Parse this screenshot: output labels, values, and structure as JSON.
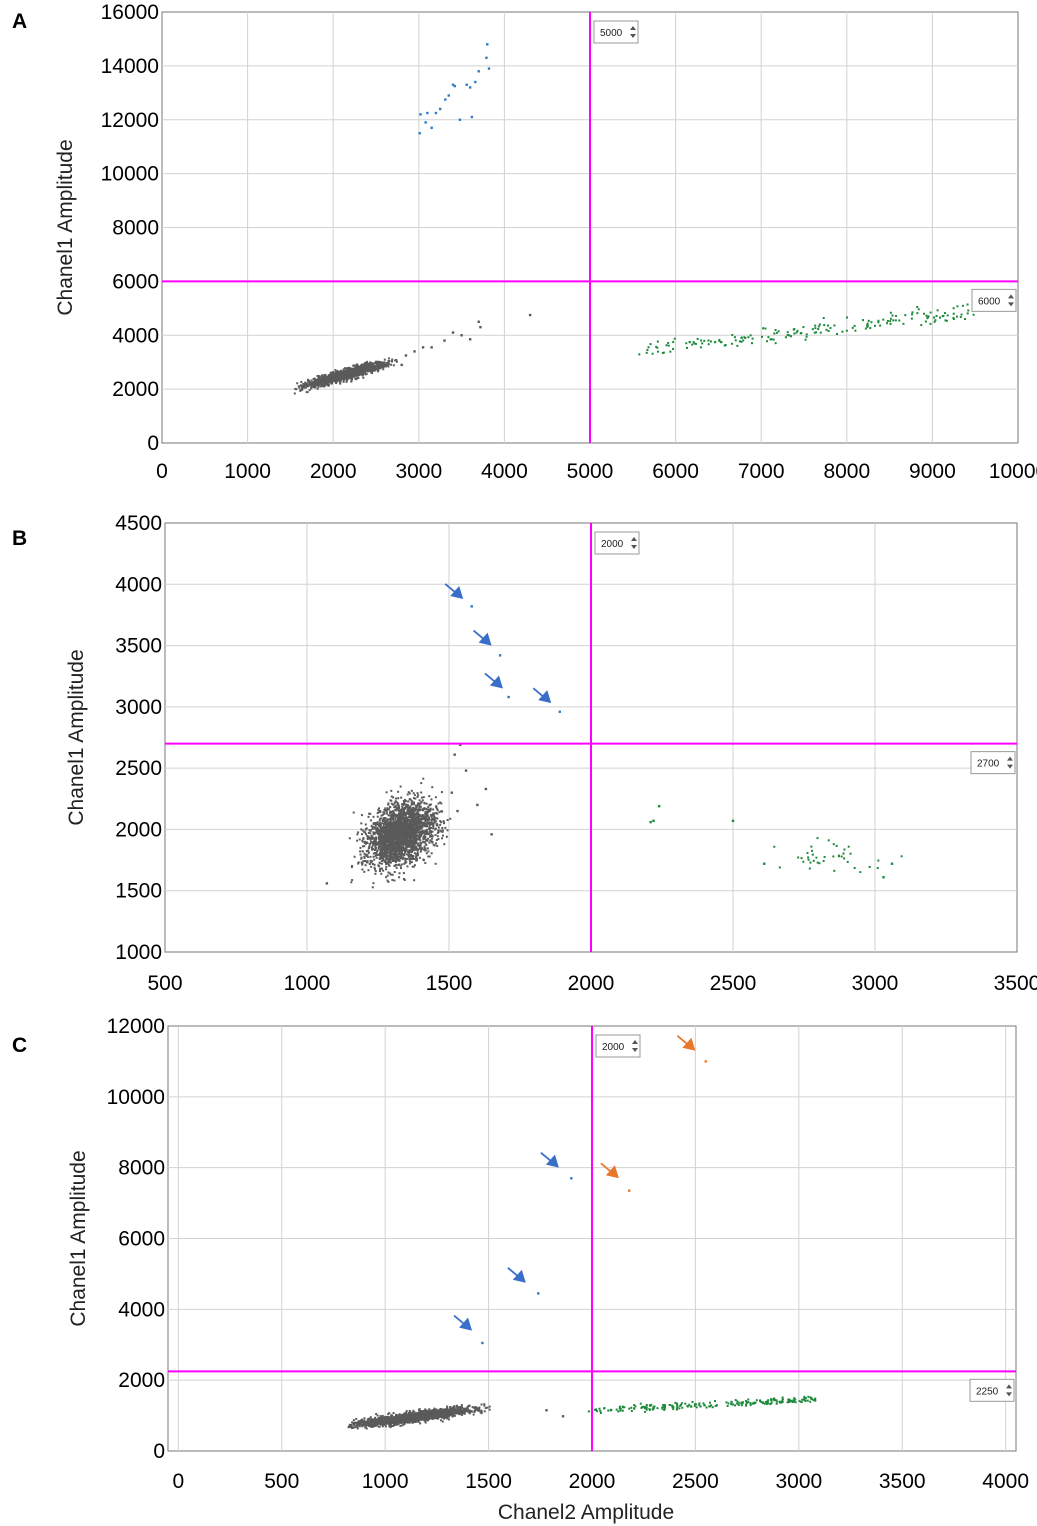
{
  "figure": {
    "panels": [
      "A",
      "B",
      "C"
    ]
  },
  "colors": {
    "threshold": "#ff00ff",
    "negative_cluster": "#5a5a5a",
    "ch1_positive": "#2f7bc4",
    "ch2_positive": "#1c8a3a",
    "blue_arrow": "#3a6fc9",
    "orange_arrow": "#e8782c",
    "orange_droplet": "#e8782c"
  },
  "chart_data": [
    {
      "type": "scatter",
      "panel_label": "A",
      "xlabel": "",
      "ylabel": "Chanel1 Amplitude",
      "xlim": [
        0,
        10000
      ],
      "ylim": [
        0,
        16000
      ],
      "xticks": [
        0,
        1000,
        2000,
        3000,
        4000,
        5000,
        6000,
        7000,
        8000,
        9000,
        10000
      ],
      "yticks": [
        0,
        2000,
        4000,
        6000,
        8000,
        10000,
        12000,
        14000,
        16000
      ],
      "x_threshold": 5000,
      "y_threshold": 6000,
      "x_threshold_label": "5000",
      "y_threshold_label": "6000",
      "grid": true,
      "clusters": [
        {
          "name": "",
          "color_key": "negative_cluster",
          "kind": "correlated",
          "cx": 2150,
          "cy": 2550,
          "sx": 230,
          "sy": 220,
          "corr": 0.9,
          "n": 1500,
          "xmin": 1550,
          "xmax": 2850
        },
        {
          "name": "",
          "color_key": "ch2_positive",
          "kind": "trend",
          "x_from": 5500,
          "y_from": 3350,
          "x_to": 9500,
          "y_to": 4900,
          "spread": 170,
          "n": 180
        }
      ],
      "points": [
        {
          "color_key": "ch1_positive",
          "xy": [
            [
              3020,
              12200
            ],
            [
              3080,
              11900
            ],
            [
              3100,
              12250
            ],
            [
              3150,
              11700
            ],
            [
              3200,
              12250
            ],
            [
              3010,
              11500
            ],
            [
              3250,
              12400
            ],
            [
              3310,
              12750
            ],
            [
              3350,
              12900
            ],
            [
              3420,
              13250
            ],
            [
              3480,
              12000
            ],
            [
              3560,
              13300
            ],
            [
              3620,
              12100
            ],
            [
              3660,
              13400
            ],
            [
              3700,
              13800
            ],
            [
              3790,
              14300
            ],
            [
              3800,
              14800
            ],
            [
              3820,
              13900
            ],
            [
              3400,
              13300
            ],
            [
              3600,
              13200
            ]
          ]
        },
        {
          "color_key": "negative_cluster",
          "xy": [
            [
              2850,
              3250
            ],
            [
              2950,
              3400
            ],
            [
              3050,
              3550
            ],
            [
              3150,
              3550
            ],
            [
              3300,
              3800
            ],
            [
              3400,
              4100
            ],
            [
              3500,
              4000
            ],
            [
              3700,
              4500
            ],
            [
              3720,
              4300
            ],
            [
              4300,
              4750
            ],
            [
              3600,
              3850
            ],
            [
              2800,
              2900
            ]
          ]
        }
      ],
      "arrows": []
    },
    {
      "type": "scatter",
      "panel_label": "B",
      "xlabel": "",
      "ylabel": "Chanel1 Amplitude",
      "xlim": [
        500,
        3500
      ],
      "ylim": [
        1000,
        4500
      ],
      "xticks": [
        500,
        1000,
        1500,
        2000,
        2500,
        3000,
        3500
      ],
      "yticks": [
        1000,
        1500,
        2000,
        2500,
        3000,
        3500,
        4000,
        4500
      ],
      "x_threshold": 2000,
      "y_threshold": 2700,
      "x_threshold_label": "2000",
      "y_threshold_label": "2700",
      "grid": true,
      "clusters": [
        {
          "name": "",
          "color_key": "negative_cluster",
          "kind": "correlated",
          "cx": 1330,
          "cy": 1960,
          "sx": 60,
          "sy": 130,
          "corr": 0.35,
          "n": 2500,
          "xmin": 1150,
          "xmax": 1560
        },
        {
          "name": "",
          "color_key": "ch2_positive",
          "kind": "blob",
          "cx": 2840,
          "cy": 1770,
          "sx": 90,
          "sy": 60,
          "n": 40
        }
      ],
      "points": [
        {
          "color_key": "ch1_positive",
          "xy": [
            [
              1580,
              3820
            ],
            [
              1680,
              3420
            ],
            [
              1710,
              3080
            ],
            [
              1890,
              2960
            ]
          ]
        },
        {
          "color_key": "ch2_positive",
          "xy": [
            [
              2210,
              2060
            ],
            [
              2220,
              2070
            ],
            [
              2240,
              2190
            ],
            [
              2500,
              2070
            ],
            [
              2610,
              1720
            ],
            [
              3030,
              1610
            ],
            [
              3060,
              1720
            ]
          ]
        },
        {
          "color_key": "negative_cluster",
          "xy": [
            [
              1070,
              1560
            ],
            [
              1520,
              2610
            ],
            [
              1540,
              2690
            ],
            [
              1560,
              2480
            ],
            [
              1630,
              2330
            ],
            [
              1650,
              1960
            ],
            [
              1600,
              2200
            ],
            [
              1510,
              2300
            ],
            [
              1530,
              2150
            ]
          ]
        }
      ],
      "arrows": [
        {
          "color_key": "blue_arrow",
          "x": 1550,
          "y": 3880
        },
        {
          "color_key": "blue_arrow",
          "x": 1650,
          "y": 3500
        },
        {
          "color_key": "blue_arrow",
          "x": 1690,
          "y": 3150
        },
        {
          "color_key": "blue_arrow",
          "x": 1860,
          "y": 3030
        }
      ]
    },
    {
      "type": "scatter",
      "panel_label": "C",
      "xlabel": "Chanel2 Amplitude",
      "ylabel": "Chanel1 Amplitude",
      "xlim": [
        -50,
        4050
      ],
      "ylim": [
        0,
        12000
      ],
      "xticks": [
        0,
        500,
        1000,
        1500,
        2000,
        2500,
        3000,
        3500,
        4000
      ],
      "yticks": [
        0,
        2000,
        4000,
        6000,
        8000,
        10000,
        12000
      ],
      "x_threshold": 2000,
      "y_threshold": 2250,
      "x_threshold_label": "2000",
      "y_threshold_label": "2250",
      "grid": true,
      "clusters": [
        {
          "name": "",
          "color_key": "negative_cluster",
          "kind": "correlated",
          "cx": 1130,
          "cy": 950,
          "sx": 150,
          "sy": 130,
          "corr": 0.85,
          "n": 1800,
          "xmin": 820,
          "xmax": 1510
        },
        {
          "name": "",
          "color_key": "ch2_positive",
          "kind": "trend",
          "x_from": 1980,
          "y_from": 1150,
          "x_to": 3080,
          "y_to": 1450,
          "spread": 60,
          "n": 220
        }
      ],
      "points": [
        {
          "color_key": "ch1_positive",
          "xy": [
            [
              1900,
              7700
            ],
            [
              1740,
              4450
            ],
            [
              1470,
              3050
            ]
          ]
        },
        {
          "color_key": "orange_droplet",
          "xy": [
            [
              2550,
              11000
            ],
            [
              2180,
              7350
            ]
          ]
        },
        {
          "color_key": "negative_cluster",
          "xy": [
            [
              1780,
              1150
            ],
            [
              1860,
              980
            ]
          ]
        }
      ],
      "arrows": [
        {
          "color_key": "blue_arrow",
          "x": 1840,
          "y": 8000
        },
        {
          "color_key": "blue_arrow",
          "x": 1680,
          "y": 4750
        },
        {
          "color_key": "blue_arrow",
          "x": 1420,
          "y": 3400
        },
        {
          "color_key": "orange_arrow",
          "x": 2500,
          "y": 11300
        },
        {
          "color_key": "orange_arrow",
          "x": 2130,
          "y": 7700
        }
      ]
    }
  ]
}
